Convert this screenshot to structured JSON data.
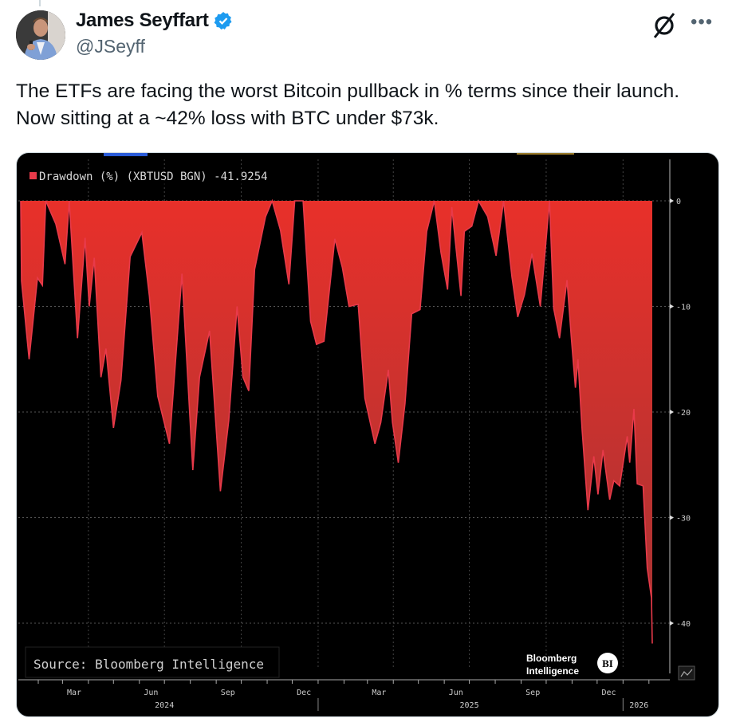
{
  "tweet": {
    "author_name": "James Seyffart",
    "verified": true,
    "handle": "@JSeyff",
    "text": "The ETFs are facing the worst Bitcoin pullback in % terms since their launch. Now sitting at a ~42% loss with BTC under $73k.",
    "icons": [
      "grok-icon",
      "more-icon",
      "verified-badge-icon"
    ]
  },
  "colors": {
    "verified": "#1d9bf0",
    "series": "#e83a4a",
    "fill_top": "#e8302a",
    "fill_bottom": "#a63434",
    "background": "#000000"
  },
  "chart_data": {
    "type": "area",
    "legend": "Drawdown (%) (XBTUSD BGN) -41.9254",
    "legend_placement": "top-left",
    "source": "Source: Bloomberg Intelligence",
    "logo": "Bloomberg Intelligence BI",
    "ylim": [
      -44,
      0
    ],
    "y_ticks": [
      "0",
      "-10",
      "-20",
      "-30",
      "-40"
    ],
    "y_tick_values": [
      0,
      -10,
      -20,
      -30,
      -40
    ],
    "x_ticks": [
      {
        "label": "Mar",
        "date": "2024-03-15"
      },
      {
        "label": "Jun",
        "date": "2024-06-15"
      },
      {
        "label": "Sep",
        "date": "2024-09-15"
      },
      {
        "label": "Dec",
        "date": "2024-12-15"
      },
      {
        "label": "Mar",
        "date": "2025-03-15"
      },
      {
        "label": "Jun",
        "date": "2025-06-15"
      },
      {
        "label": "Sep",
        "date": "2025-09-15"
      },
      {
        "label": "Dec",
        "date": "2025-12-15"
      }
    ],
    "years": [
      "2024",
      "2025",
      "2026"
    ],
    "xlim": [
      "2024-01-11",
      "2026-02-05"
    ],
    "grid": true,
    "points": [
      [
        "2024-01-11",
        0
      ],
      [
        "2024-01-12",
        -7.6
      ],
      [
        "2024-01-21",
        -15
      ],
      [
        "2024-01-31",
        -7.3
      ],
      [
        "2024-02-06",
        -8
      ],
      [
        "2024-02-10",
        0
      ],
      [
        "2024-02-22",
        -2.2
      ],
      [
        "2024-03-04",
        -6
      ],
      [
        "2024-03-09",
        0
      ],
      [
        "2024-03-19",
        -13
      ],
      [
        "2024-03-28",
        -3.5
      ],
      [
        "2024-04-02",
        -10
      ],
      [
        "2024-04-08",
        -5.4
      ],
      [
        "2024-04-16",
        -16.7
      ],
      [
        "2024-04-22",
        -14
      ],
      [
        "2024-05-01",
        -21.5
      ],
      [
        "2024-05-10",
        -17
      ],
      [
        "2024-05-21",
        -5.3
      ],
      [
        "2024-06-04",
        -3
      ],
      [
        "2024-06-13",
        -9
      ],
      [
        "2024-06-23",
        -18.5
      ],
      [
        "2024-07-07",
        -23
      ],
      [
        "2024-07-22",
        -6.9
      ],
      [
        "2024-08-04",
        -25.5
      ],
      [
        "2024-08-12",
        -16.7
      ],
      [
        "2024-08-24",
        -12.3
      ],
      [
        "2024-09-06",
        -27.5
      ],
      [
        "2024-09-16",
        -20.8
      ],
      [
        "2024-09-26",
        -10
      ],
      [
        "2024-10-03",
        -16.7
      ],
      [
        "2024-10-10",
        -18
      ],
      [
        "2024-10-17",
        -6.5
      ],
      [
        "2024-10-30",
        -1.5
      ],
      [
        "2024-11-07",
        0
      ],
      [
        "2024-11-17",
        -2.8
      ],
      [
        "2024-11-27",
        -7.9
      ],
      [
        "2024-12-04",
        0
      ],
      [
        "2024-12-14",
        0
      ],
      [
        "2024-12-23",
        -11.4
      ],
      [
        "2024-12-30",
        -13.6
      ],
      [
        "2025-01-08",
        -13.3
      ],
      [
        "2025-01-21",
        -3.6
      ],
      [
        "2025-01-30",
        -6.3
      ],
      [
        "2025-02-07",
        -10
      ],
      [
        "2025-02-18",
        -9.8
      ],
      [
        "2025-02-26",
        -18.7
      ],
      [
        "2025-03-10",
        -23
      ],
      [
        "2025-03-17",
        -21
      ],
      [
        "2025-03-26",
        -16
      ],
      [
        "2025-03-31",
        -21
      ],
      [
        "2025-04-07",
        -24.8
      ],
      [
        "2025-04-15",
        -19.2
      ],
      [
        "2025-04-23",
        -10.7
      ],
      [
        "2025-05-03",
        -10.3
      ],
      [
        "2025-05-11",
        -2.9
      ],
      [
        "2025-05-20",
        0
      ],
      [
        "2025-05-28",
        -4.9
      ],
      [
        "2025-06-05",
        -8.4
      ],
      [
        "2025-06-10",
        -0.6
      ],
      [
        "2025-06-21",
        -9
      ],
      [
        "2025-06-25",
        -2.9
      ],
      [
        "2025-07-04",
        -2.4
      ],
      [
        "2025-07-12",
        0
      ],
      [
        "2025-07-23",
        -1.5
      ],
      [
        "2025-08-02",
        -5.2
      ],
      [
        "2025-08-11",
        0
      ],
      [
        "2025-08-21",
        -7.2
      ],
      [
        "2025-08-28",
        -11
      ],
      [
        "2025-09-05",
        -8.9
      ],
      [
        "2025-09-14",
        -5
      ],
      [
        "2025-09-24",
        -10
      ],
      [
        "2025-10-05",
        0
      ],
      [
        "2025-10-10",
        -10.2
      ],
      [
        "2025-10-17",
        -13
      ],
      [
        "2025-10-26",
        -7.5
      ],
      [
        "2025-10-31",
        -12.9
      ],
      [
        "2025-11-05",
        -17.7
      ],
      [
        "2025-11-08",
        -15
      ],
      [
        "2025-11-13",
        -21.7
      ],
      [
        "2025-11-20",
        -29.3
      ],
      [
        "2025-11-27",
        -24.2
      ],
      [
        "2025-12-02",
        -27.8
      ],
      [
        "2025-12-08",
        -23.6
      ],
      [
        "2025-12-16",
        -28.3
      ],
      [
        "2025-12-21",
        -26.5
      ],
      [
        "2025-12-28",
        -27
      ],
      [
        "2026-01-06",
        -22.3
      ],
      [
        "2026-01-09",
        -24.8
      ],
      [
        "2026-01-14",
        -19.7
      ],
      [
        "2026-01-18",
        -26.8
      ],
      [
        "2026-01-25",
        -27
      ],
      [
        "2026-01-30",
        -34.8
      ],
      [
        "2026-02-04",
        -37.6
      ],
      [
        "2026-02-05",
        -41.9254
      ]
    ]
  }
}
